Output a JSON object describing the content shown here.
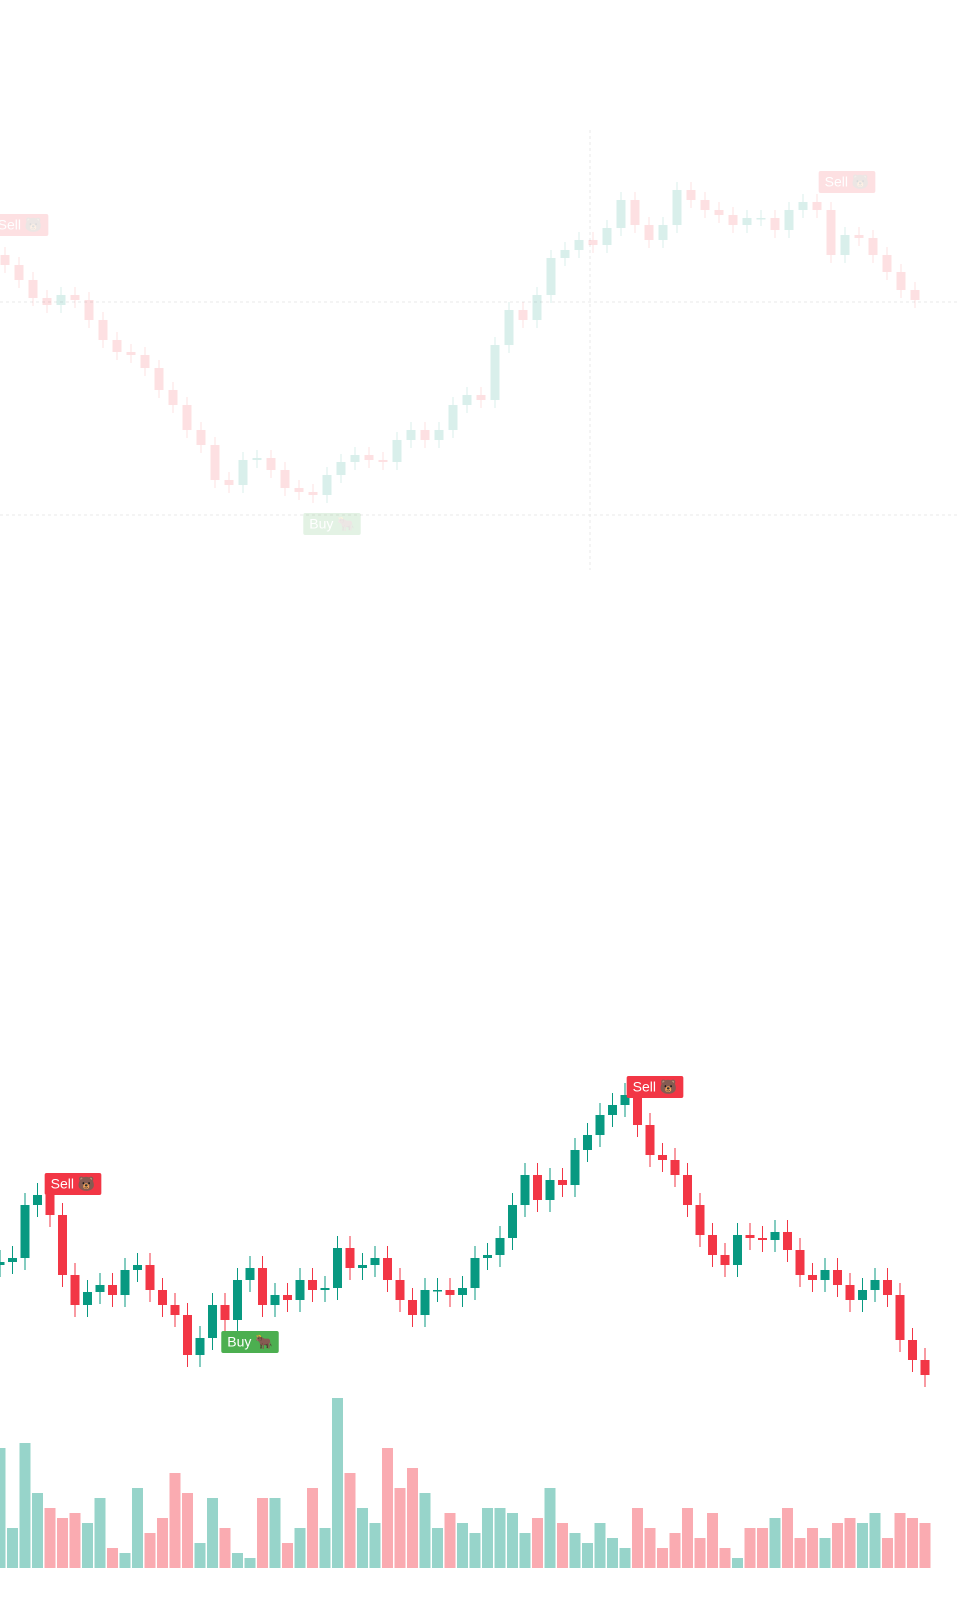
{
  "chart_data": [
    {
      "type": "candlestick",
      "faded": true,
      "up_color": "#089981",
      "down_color": "#f23645",
      "ylim": [
        30,
        470
      ],
      "open": [
        345,
        335,
        320,
        302,
        295,
        305,
        300,
        280,
        260,
        248,
        245,
        232,
        210,
        195,
        170,
        155,
        120,
        115,
        140,
        142,
        130,
        112,
        108,
        105,
        125,
        138,
        145,
        140,
        138,
        160,
        170,
        160,
        170,
        195,
        205,
        200,
        255,
        290,
        280,
        305,
        342,
        350,
        360,
        355,
        372,
        400,
        375,
        360,
        375,
        410,
        400,
        390,
        385,
        375,
        382,
        382,
        370,
        390,
        398,
        390,
        345,
        365,
        362,
        345,
        328,
        310
      ],
      "high": [
        353,
        343,
        328,
        310,
        313,
        313,
        308,
        288,
        268,
        256,
        253,
        240,
        218,
        203,
        178,
        163,
        128,
        148,
        150,
        150,
        138,
        120,
        116,
        133,
        146,
        153,
        153,
        148,
        168,
        178,
        178,
        178,
        203,
        213,
        213,
        263,
        298,
        298,
        313,
        350,
        358,
        368,
        368,
        380,
        408,
        408,
        383,
        383,
        418,
        418,
        408,
        398,
        393,
        390,
        390,
        390,
        398,
        406,
        406,
        398,
        373,
        373,
        370,
        353,
        336,
        318
      ],
      "low": [
        327,
        312,
        294,
        287,
        287,
        292,
        272,
        252,
        240,
        237,
        224,
        202,
        187,
        162,
        147,
        112,
        107,
        107,
        132,
        122,
        104,
        100,
        97,
        97,
        117,
        130,
        132,
        130,
        130,
        152,
        152,
        152,
        162,
        187,
        192,
        192,
        247,
        272,
        272,
        297,
        334,
        342,
        347,
        347,
        364,
        367,
        352,
        352,
        367,
        392,
        382,
        377,
        367,
        367,
        374,
        362,
        362,
        382,
        382,
        337,
        337,
        354,
        337,
        320,
        302,
        292
      ],
      "close": [
        335,
        320,
        302,
        295,
        305,
        300,
        280,
        260,
        248,
        245,
        232,
        210,
        195,
        170,
        155,
        120,
        115,
        140,
        142,
        130,
        112,
        108,
        105,
        125,
        138,
        145,
        140,
        138,
        160,
        170,
        160,
        170,
        195,
        205,
        200,
        255,
        290,
        280,
        305,
        342,
        350,
        360,
        355,
        372,
        400,
        375,
        360,
        375,
        410,
        400,
        390,
        385,
        375,
        382,
        382,
        370,
        390,
        398,
        390,
        345,
        365,
        362,
        345,
        328,
        310,
        300
      ],
      "annotations": [
        {
          "text": "Sell 🐻",
          "color": "#f23645"
        },
        {
          "text": "Sell 🐻",
          "color": "#f23645"
        },
        {
          "text": "Buy 🐂",
          "color": "#4caf50"
        }
      ]
    },
    {
      "type": "candlestick",
      "faded": false,
      "up_color": "#089981",
      "down_color": "#f23645",
      "ylim": [
        50,
        390
      ],
      "open": [
        185,
        188,
        192,
        245,
        255,
        235,
        175,
        145,
        158,
        165,
        155,
        180,
        185,
        160,
        145,
        135,
        95,
        112,
        145,
        130,
        170,
        182,
        145,
        155,
        150,
        170,
        160,
        162,
        202,
        182,
        185,
        192,
        170,
        150,
        135,
        160,
        160,
        155,
        162,
        192,
        195,
        212,
        245,
        275,
        250,
        270,
        265,
        300,
        315,
        335,
        345,
        355,
        325,
        295,
        290,
        275,
        245,
        215,
        195,
        185,
        215,
        212,
        210,
        218,
        200,
        175,
        170,
        180,
        165,
        150,
        160,
        170,
        155,
        110,
        90
      ],
      "high": [
        200,
        204,
        257,
        267,
        267,
        247,
        187,
        170,
        177,
        177,
        192,
        197,
        197,
        172,
        157,
        147,
        124,
        157,
        157,
        182,
        194,
        194,
        167,
        167,
        182,
        182,
        174,
        214,
        214,
        197,
        204,
        204,
        182,
        162,
        172,
        172,
        172,
        174,
        204,
        207,
        224,
        257,
        287,
        287,
        282,
        282,
        312,
        327,
        347,
        357,
        367,
        367,
        337,
        307,
        302,
        287,
        257,
        227,
        207,
        227,
        227,
        224,
        230,
        230,
        212,
        187,
        192,
        192,
        177,
        172,
        182,
        182,
        167,
        122,
        102
      ],
      "low": [
        173,
        176,
        180,
        233,
        223,
        163,
        133,
        133,
        146,
        143,
        143,
        168,
        148,
        133,
        123,
        83,
        83,
        100,
        118,
        118,
        158,
        133,
        133,
        138,
        138,
        148,
        148,
        150,
        170,
        170,
        173,
        158,
        138,
        123,
        123,
        148,
        143,
        143,
        150,
        180,
        183,
        200,
        233,
        238,
        238,
        253,
        253,
        288,
        303,
        323,
        333,
        313,
        283,
        278,
        263,
        233,
        203,
        183,
        173,
        173,
        200,
        198,
        198,
        188,
        163,
        158,
        158,
        153,
        138,
        138,
        148,
        143,
        98,
        78,
        63
      ],
      "close": [
        188,
        192,
        245,
        255,
        235,
        175,
        145,
        158,
        165,
        155,
        180,
        185,
        160,
        145,
        135,
        95,
        112,
        145,
        130,
        170,
        182,
        145,
        155,
        150,
        170,
        160,
        162,
        202,
        182,
        185,
        192,
        170,
        150,
        135,
        160,
        160,
        155,
        162,
        192,
        195,
        212,
        245,
        275,
        250,
        270,
        265,
        300,
        315,
        335,
        345,
        355,
        325,
        295,
        290,
        275,
        245,
        215,
        195,
        185,
        215,
        212,
        210,
        218,
        200,
        175,
        170,
        180,
        165,
        150,
        160,
        170,
        155,
        110,
        90,
        75
      ],
      "volume": [
        120,
        40,
        125,
        75,
        60,
        50,
        55,
        45,
        70,
        20,
        15,
        80,
        35,
        50,
        95,
        75,
        25,
        70,
        40,
        15,
        10,
        70,
        70,
        25,
        40,
        80,
        40,
        170,
        95,
        60,
        45,
        120,
        80,
        100,
        75,
        40,
        55,
        45,
        35,
        60,
        60,
        55,
        35,
        50,
        80,
        45,
        35,
        25,
        45,
        30,
        20,
        60,
        40,
        20,
        35,
        60,
        30,
        55,
        20,
        10,
        40,
        40,
        50,
        60,
        30,
        40,
        30,
        45,
        50,
        45,
        55,
        30,
        55,
        50,
        45
      ],
      "volume_ylim": [
        0,
        170
      ],
      "annotations": [
        {
          "text": "Sell 🐻",
          "color": "#f23645"
        },
        {
          "text": "Sell 🐻",
          "color": "#f23645"
        },
        {
          "text": "Buy 🐂",
          "color": "#4caf50"
        }
      ]
    }
  ]
}
